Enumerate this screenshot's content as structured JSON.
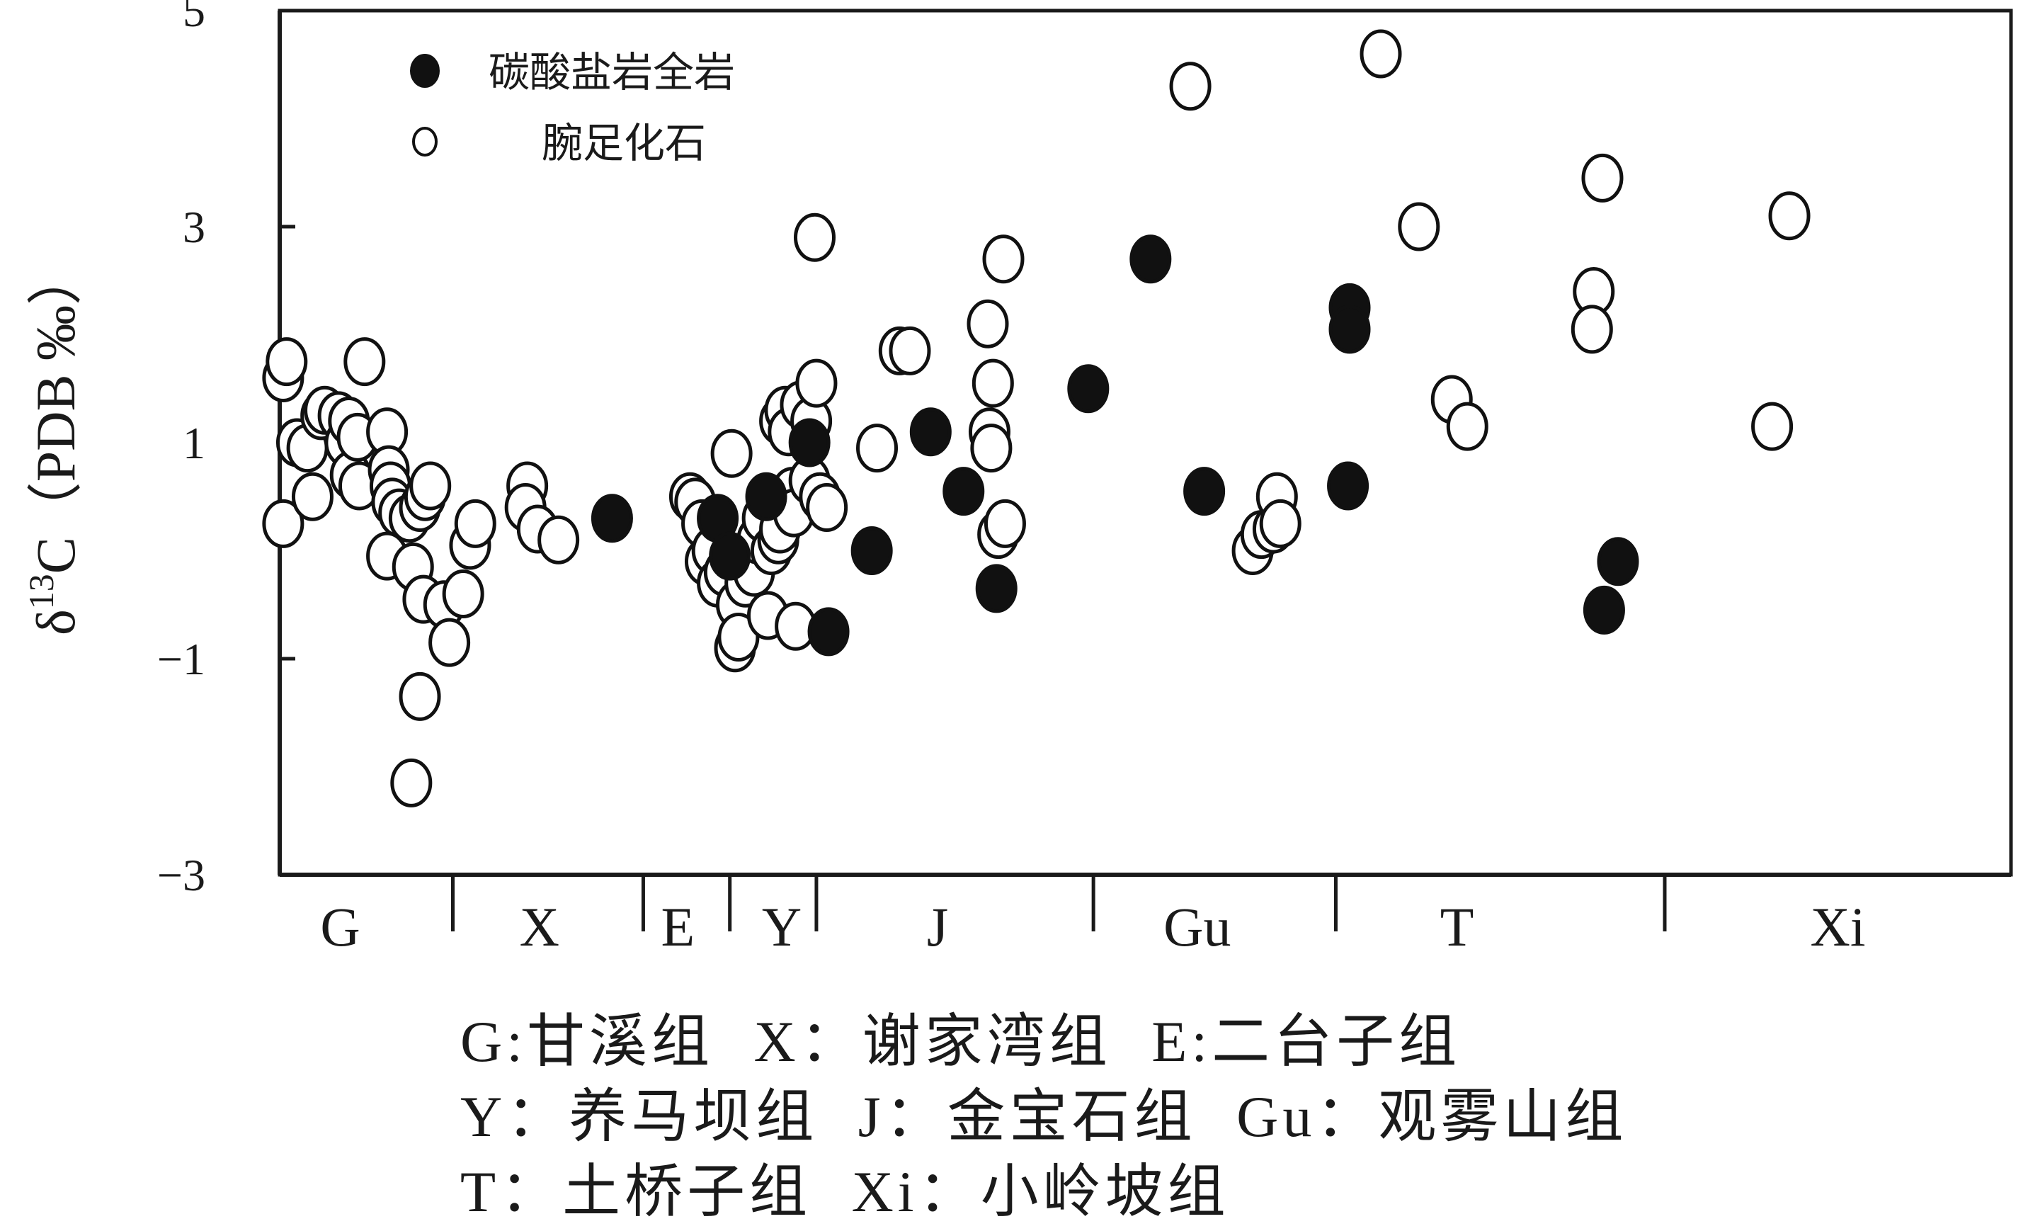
{
  "chart_data": {
    "type": "scatter",
    "ylabel": "δ13C（PDB ‰）",
    "ylabel_parts": {
      "delta": "δ",
      "sup": "13",
      "rest": "C（PDB ‰）"
    },
    "ylim": [
      -3,
      5
    ],
    "yticks": [
      {
        "value": 5,
        "label": "5"
      },
      {
        "value": 3,
        "label": "3"
      },
      {
        "value": 1,
        "label": "1"
      },
      {
        "value": -1,
        "label": "−1"
      },
      {
        "value": -3,
        "label": "−3"
      }
    ],
    "xlim": [
      0,
      100
    ],
    "x_dividers": [
      10,
      21,
      26,
      31,
      47,
      61,
      80
    ],
    "formations": [
      {
        "code": "G",
        "center": 3.5
      },
      {
        "code": "X",
        "center": 15
      },
      {
        "code": "E",
        "center": 23
      },
      {
        "code": "Y",
        "center": 29
      },
      {
        "code": "J",
        "center": 38
      },
      {
        "code": "Gu",
        "center": 53
      },
      {
        "code": "T",
        "center": 68
      },
      {
        "code": "Xi",
        "center": 90
      }
    ],
    "legend": [
      {
        "marker": "filled",
        "label": "碳酸盐岩全岩",
        "color": "#111111"
      },
      {
        "marker": "open",
        "label": "腕足化石",
        "color": "#ffffff"
      }
    ],
    "series": [
      {
        "name": "碳酸盐岩全岩",
        "marker": "filled",
        "points": [
          [
            19.2,
            0.3
          ],
          [
            25.3,
            0.3
          ],
          [
            26.0,
            -0.05
          ],
          [
            28.1,
            0.5
          ],
          [
            30.6,
            1.0
          ],
          [
            31.7,
            -0.75
          ],
          [
            34.2,
            0.0
          ],
          [
            37.6,
            1.1
          ],
          [
            39.5,
            0.55
          ],
          [
            41.4,
            -0.35
          ],
          [
            46.7,
            1.5
          ],
          [
            50.3,
            2.7
          ],
          [
            53.4,
            0.55
          ],
          [
            61.8,
            2.25
          ],
          [
            61.8,
            2.05
          ],
          [
            61.7,
            0.6
          ],
          [
            76.5,
            -0.55
          ],
          [
            77.3,
            -0.1
          ]
        ]
      },
      {
        "name": "腕足化石",
        "marker": "open",
        "points": [
          [
            0.2,
            0.25
          ],
          [
            0.2,
            1.6
          ],
          [
            0.4,
            1.75
          ],
          [
            1.0,
            1.0
          ],
          [
            1.6,
            0.95
          ],
          [
            1.9,
            0.5
          ],
          [
            2.4,
            1.25
          ],
          [
            2.6,
            1.3
          ],
          [
            3.4,
            1.25
          ],
          [
            3.8,
            1.0
          ],
          [
            4.0,
            1.2
          ],
          [
            4.1,
            0.7
          ],
          [
            4.5,
            1.05
          ],
          [
            4.6,
            0.6
          ],
          [
            4.9,
            1.75
          ],
          [
            6.2,
            1.1
          ],
          [
            6.3,
            0.75
          ],
          [
            6.4,
            0.6
          ],
          [
            6.5,
            0.45
          ],
          [
            6.9,
            0.35
          ],
          [
            6.2,
            -0.05
          ],
          [
            7.5,
            0.3
          ],
          [
            8.1,
            0.4
          ],
          [
            8.4,
            0.5
          ],
          [
            8.7,
            0.6
          ],
          [
            7.7,
            -0.15
          ],
          [
            8.3,
            -0.45
          ],
          [
            9.5,
            -0.5
          ],
          [
            10.6,
            -0.4
          ],
          [
            9.8,
            -0.85
          ],
          [
            11.0,
            0.05
          ],
          [
            11.3,
            0.25
          ],
          [
            8.1,
            -1.35
          ],
          [
            7.6,
            -2.15
          ],
          [
            14.3,
            0.6
          ],
          [
            14.2,
            0.4
          ],
          [
            14.9,
            0.2
          ],
          [
            16.1,
            0.1
          ],
          [
            23.7,
            0.5
          ],
          [
            24.0,
            0.45
          ],
          [
            24.4,
            0.25
          ],
          [
            24.6,
            -0.1
          ],
          [
            25.0,
            0.0
          ],
          [
            25.3,
            -0.3
          ],
          [
            25.7,
            -0.2
          ],
          [
            26.1,
            0.9
          ],
          [
            26.4,
            -0.5
          ],
          [
            26.3,
            -0.9
          ],
          [
            26.5,
            -0.8
          ],
          [
            26.9,
            -0.3
          ],
          [
            27.4,
            -0.2
          ],
          [
            27.6,
            0.1
          ],
          [
            27.9,
            0.3
          ],
          [
            28.2,
            -0.6
          ],
          [
            28.4,
            0.0
          ],
          [
            28.8,
            0.1
          ],
          [
            28.9,
            0.2
          ],
          [
            28.9,
            1.2
          ],
          [
            29.2,
            1.3
          ],
          [
            29.4,
            1.1
          ],
          [
            29.6,
            0.55
          ],
          [
            29.7,
            0.35
          ],
          [
            29.8,
            -0.7
          ],
          [
            30.1,
            1.35
          ],
          [
            30.6,
            0.65
          ],
          [
            30.7,
            1.2
          ],
          [
            31.0,
            1.55
          ],
          [
            31.2,
            0.5
          ],
          [
            31.6,
            0.4
          ],
          [
            30.9,
            2.9
          ],
          [
            34.5,
            0.95
          ],
          [
            35.8,
            1.85
          ],
          [
            36.4,
            1.85
          ],
          [
            40.9,
            2.1
          ],
          [
            41.0,
            1.1
          ],
          [
            41.2,
            1.55
          ],
          [
            41.1,
            0.95
          ],
          [
            41.8,
            2.7
          ],
          [
            41.5,
            0.15
          ],
          [
            41.9,
            0.25
          ],
          [
            52.6,
            4.3
          ],
          [
            56.2,
            0.0
          ],
          [
            56.7,
            0.15
          ],
          [
            57.4,
            0.2
          ],
          [
            57.6,
            0.5
          ],
          [
            57.8,
            0.25
          ],
          [
            63.6,
            4.6
          ],
          [
            65.8,
            3.0
          ],
          [
            67.7,
            1.4
          ],
          [
            68.6,
            1.15
          ],
          [
            75.9,
            2.4
          ],
          [
            75.8,
            2.05
          ],
          [
            76.4,
            3.45
          ],
          [
            86.2,
            1.15
          ],
          [
            87.2,
            3.1
          ]
        ]
      }
    ]
  },
  "key": {
    "line1": [
      "G:甘溪组",
      "X：谢家湾组",
      "E:二台子组"
    ],
    "line2": [
      "Y：养马坝组",
      "J：金宝石组",
      "Gu：观雾山组"
    ],
    "line3": [
      "T：土桥子组",
      "Xi：小岭坡组"
    ]
  }
}
